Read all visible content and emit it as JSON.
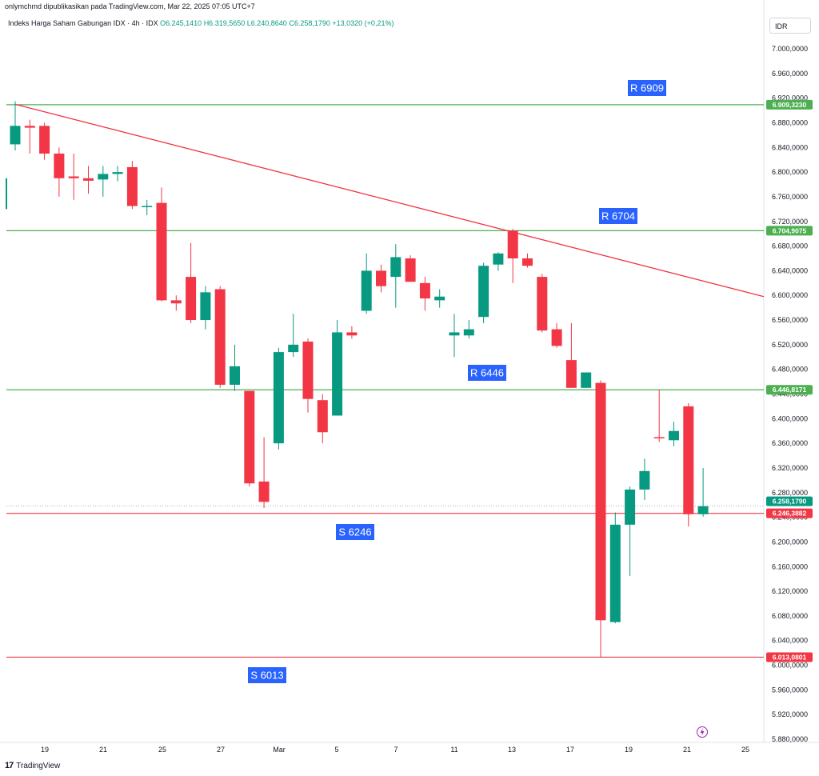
{
  "header": {
    "publisher": "onlymchmd dipublikasikan pada TradingView.com, Mar 22, 2025 07:05 UTC+7"
  },
  "legend": {
    "symbol": "Indeks Harga Saham Gabungan IDX · 4h · IDX",
    "open": "O6.245,1410",
    "high": "H6.319,5650",
    "low": "L6.240,8640",
    "close": "C6.258,1790",
    "change": "+13,0320 (+0,21%)"
  },
  "currency": "IDR",
  "footer": {
    "brand": "TradingView"
  },
  "colors": {
    "up": "#089981",
    "down": "#f23645",
    "resistance": "#4caf50",
    "support": "#f23645",
    "trend": "#f23645",
    "label_box": "#2962ff",
    "last_price": "#089981"
  },
  "chart_data": {
    "type": "candlestick",
    "ylim": [
      5870,
      7040
    ],
    "y_ticks": [
      "5.880,0000",
      "5.920,0000",
      "5.960,0000",
      "6.000,0000",
      "6.040,0000",
      "6.080,0000",
      "6.120,0000",
      "6.160,0000",
      "6.200,0000",
      "6.240,0000",
      "6.280,0000",
      "6.320,0000",
      "6.360,0000",
      "6.400,0000",
      "6.440,0000",
      "6.480,0000",
      "6.520,0000",
      "6.560,0000",
      "6.600,0000",
      "6.640,0000",
      "6.680,0000",
      "6.720,0000",
      "6.760,0000",
      "6.800,0000",
      "6.840,0000",
      "6.880,0000",
      "6.920,0000",
      "6.960,0000",
      "7.000,0000"
    ],
    "y_tick_values": [
      5880,
      5920,
      5960,
      6000,
      6040,
      6080,
      6120,
      6160,
      6200,
      6240,
      6280,
      6320,
      6360,
      6400,
      6440,
      6480,
      6520,
      6560,
      6600,
      6640,
      6680,
      6720,
      6760,
      6800,
      6840,
      6880,
      6920,
      6960,
      7000
    ],
    "x_ticks": [
      {
        "label": "19",
        "date": "2025-02-19"
      },
      {
        "label": "21",
        "date": "2025-02-21"
      },
      {
        "label": "25",
        "date": "2025-02-25"
      },
      {
        "label": "27",
        "date": "2025-02-27"
      },
      {
        "label": "Mar",
        "date": "2025-03-01"
      },
      {
        "label": "5",
        "date": "2025-03-05"
      },
      {
        "label": "7",
        "date": "2025-03-07"
      },
      {
        "label": "11",
        "date": "2025-03-11"
      },
      {
        "label": "13",
        "date": "2025-03-13"
      },
      {
        "label": "17",
        "date": "2025-03-17"
      },
      {
        "label": "19",
        "date": "2025-03-19"
      },
      {
        "label": "21",
        "date": "2025-03-21"
      },
      {
        "label": "25",
        "date": "2025-03-25"
      }
    ],
    "candles": [
      {
        "o": 6845,
        "h": 6915,
        "l": 6835,
        "c": 6875
      },
      {
        "o": 6875,
        "h": 6885,
        "l": 6830,
        "c": 6872
      },
      {
        "o": 6875,
        "h": 6880,
        "l": 6820,
        "c": 6830
      },
      {
        "o": 6830,
        "h": 6840,
        "l": 6760,
        "c": 6790
      },
      {
        "o": 6793,
        "h": 6830,
        "l": 6755,
        "c": 6790
      },
      {
        "o": 6790,
        "h": 6810,
        "l": 6765,
        "c": 6786
      },
      {
        "o": 6788,
        "h": 6810,
        "l": 6760,
        "c": 6797
      },
      {
        "o": 6797,
        "h": 6810,
        "l": 6785,
        "c": 6800
      },
      {
        "o": 6808,
        "h": 6818,
        "l": 6740,
        "c": 6745
      },
      {
        "o": 6744,
        "h": 6755,
        "l": 6730,
        "c": 6745
      },
      {
        "o": 6750,
        "h": 6775,
        "l": 6590,
        "c": 6592
      },
      {
        "o": 6592,
        "h": 6600,
        "l": 6575,
        "c": 6587
      },
      {
        "o": 6630,
        "h": 6685,
        "l": 6555,
        "c": 6560
      },
      {
        "o": 6560,
        "h": 6615,
        "l": 6545,
        "c": 6605
      },
      {
        "o": 6610,
        "h": 6615,
        "l": 6450,
        "c": 6455
      },
      {
        "o": 6455,
        "h": 6520,
        "l": 6445,
        "c": 6485
      },
      {
        "o": 6445,
        "h": 6445,
        "l": 6290,
        "c": 6295
      },
      {
        "o": 6298,
        "h": 6370,
        "l": 6255,
        "c": 6265
      },
      {
        "o": 6360,
        "h": 6515,
        "l": 6350,
        "c": 6508
      },
      {
        "o": 6508,
        "h": 6570,
        "l": 6500,
        "c": 6520
      },
      {
        "o": 6525,
        "h": 6530,
        "l": 6410,
        "c": 6432
      },
      {
        "o": 6430,
        "h": 6440,
        "l": 6360,
        "c": 6378
      },
      {
        "o": 6405,
        "h": 6560,
        "l": 6405,
        "c": 6540
      },
      {
        "o": 6540,
        "h": 6550,
        "l": 6530,
        "c": 6535
      },
      {
        "o": 6575,
        "h": 6668,
        "l": 6570,
        "c": 6640
      },
      {
        "o": 6640,
        "h": 6650,
        "l": 6605,
        "c": 6615
      },
      {
        "o": 6630,
        "h": 6683,
        "l": 6580,
        "c": 6662
      },
      {
        "o": 6660,
        "h": 6665,
        "l": 6625,
        "c": 6622
      },
      {
        "o": 6620,
        "h": 6630,
        "l": 6575,
        "c": 6595
      },
      {
        "o": 6592,
        "h": 6610,
        "l": 6580,
        "c": 6598
      },
      {
        "o": 6535,
        "h": 6570,
        "l": 6500,
        "c": 6540
      },
      {
        "o": 6535,
        "h": 6560,
        "l": 6530,
        "c": 6545
      },
      {
        "o": 6565,
        "h": 6653,
        "l": 6555,
        "c": 6648
      },
      {
        "o": 6650,
        "h": 6670,
        "l": 6640,
        "c": 6668
      },
      {
        "o": 6705,
        "h": 6708,
        "l": 6620,
        "c": 6660
      },
      {
        "o": 6660,
        "h": 6668,
        "l": 6645,
        "c": 6648
      },
      {
        "o": 6630,
        "h": 6635,
        "l": 6540,
        "c": 6543
      },
      {
        "o": 6545,
        "h": 6555,
        "l": 6515,
        "c": 6518
      },
      {
        "o": 6495,
        "h": 6555,
        "l": 6450,
        "c": 6450
      },
      {
        "o": 6450,
        "h": 6470,
        "l": 6450,
        "c": 6475
      },
      {
        "o": 6458,
        "h": 6462,
        "l": 6013,
        "c": 6073
      },
      {
        "o": 6070,
        "h": 6248,
        "l": 6068,
        "c": 6228
      },
      {
        "o": 6228,
        "h": 6290,
        "l": 6145,
        "c": 6285
      },
      {
        "o": 6285,
        "h": 6335,
        "l": 6268,
        "c": 6315
      },
      {
        "o": 6370,
        "h": 6447,
        "l": 6362,
        "c": 6368
      },
      {
        "o": 6365,
        "h": 6395,
        "l": 6355,
        "c": 6380
      },
      {
        "o": 6420,
        "h": 6425,
        "l": 6225,
        "c": 6245
      },
      {
        "o": 6245,
        "h": 6320,
        "l": 6241,
        "c": 6258
      }
    ],
    "levels": [
      {
        "name": "R 6909",
        "kind": "resistance",
        "value": 6909.323,
        "tag": "6.909,3230"
      },
      {
        "name": "R 6704",
        "kind": "resistance",
        "value": 6704.9075,
        "tag": "6.704,9075"
      },
      {
        "name": "R 6446",
        "kind": "resistance",
        "value": 6446.8171,
        "tag": "6.446,8171"
      },
      {
        "name": "S 6246",
        "kind": "support",
        "value": 6246.3882,
        "tag": "6.246,3882"
      },
      {
        "name": "S 6013",
        "kind": "support",
        "value": 6013.0801,
        "tag": "6.013,0801"
      }
    ],
    "last_price": {
      "value": 6258.179,
      "tag": "6.258,1790"
    },
    "trendline": {
      "from": {
        "date": "2025-02-18",
        "value": 6910
      },
      "to": {
        "date": "2025-03-25",
        "value": 6598
      }
    }
  }
}
